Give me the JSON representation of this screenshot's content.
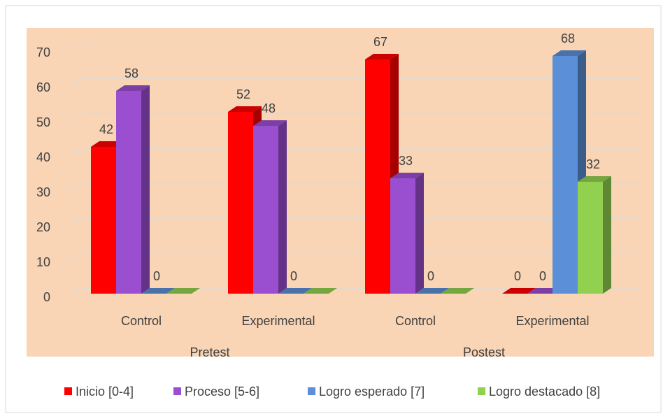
{
  "chart_data": {
    "type": "bar",
    "categories": [
      "Control",
      "Experimental",
      "Control",
      "Experimental"
    ],
    "group_labels": [
      "Pretest",
      "Postest"
    ],
    "series": [
      {
        "name": "Inicio [0-4]",
        "color": "#ff0000",
        "values": [
          42,
          52,
          67,
          0
        ]
      },
      {
        "name": "Proceso [5-6]",
        "color": "#9a4fd0",
        "values": [
          58,
          48,
          33,
          0
        ]
      },
      {
        "name": "Logro esperado [7]",
        "color": "#5b8fd8",
        "values": [
          0,
          0,
          0,
          68
        ]
      },
      {
        "name": "Logro destacado [8]",
        "color": "#92d050",
        "values": [
          0,
          0,
          0,
          32
        ],
        "value_labels": [
          null,
          null,
          null,
          32
        ]
      }
    ],
    "ylim": [
      0,
      70
    ],
    "yticks": [
      0,
      10,
      20,
      30,
      40,
      50,
      60,
      70
    ],
    "grid": true,
    "legend": "bottom"
  }
}
